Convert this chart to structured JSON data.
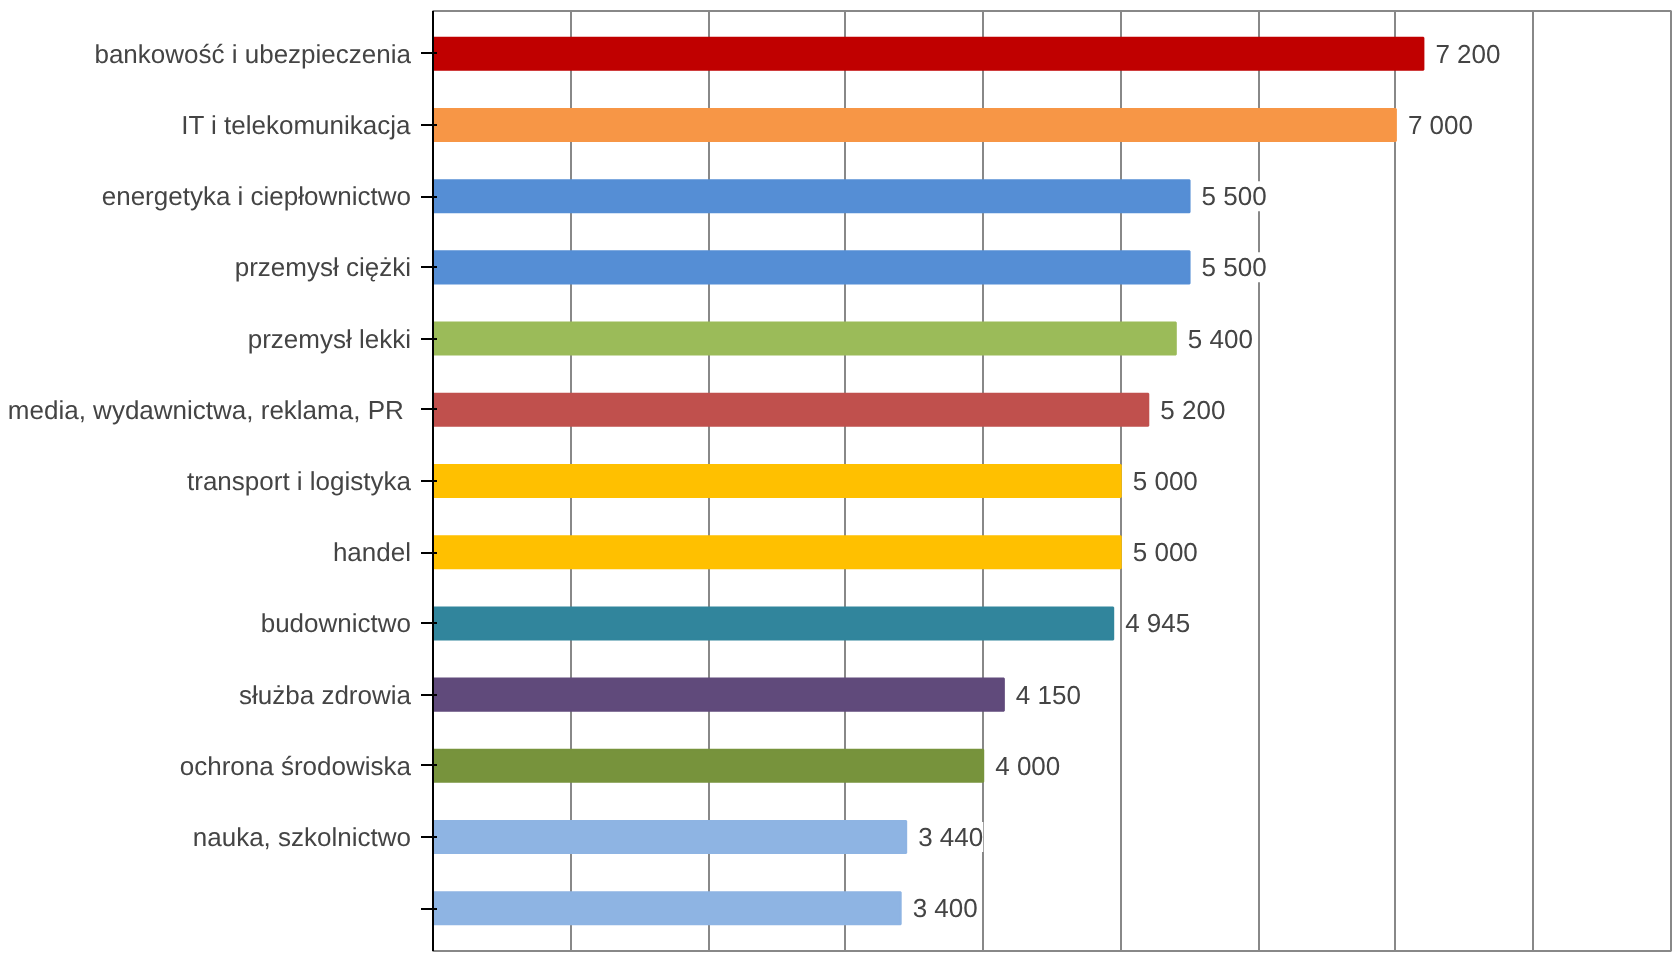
{
  "chart_data": {
    "type": "bar",
    "orientation": "horizontal",
    "categories": [
      "bankowość i ubezpieczenia",
      "IT i telekomunikacja",
      "energetyka i ciepłownictwo",
      "przemysł ciężki",
      "przemysł lekki",
      "media, wydawnictwa,  reklama, PR",
      "transport i logistyka",
      "handel",
      "budownictwo",
      "służba zdrowia",
      "ochrona środowiska",
      "nauka, szkolnictwo",
      null
    ],
    "values": [
      7200,
      7000,
      5500,
      5500,
      5400,
      5200,
      5000,
      5000,
      4945,
      4150,
      4000,
      3440,
      3400
    ],
    "value_labels": [
      "7 200",
      "7 000",
      "5 500",
      "5 500",
      "5 400",
      "5 200",
      "5 000",
      "5 000",
      "4 945",
      "4 150",
      "4 000",
      "3 440",
      "3 400"
    ],
    "colors": [
      "#c00000",
      "#f79646",
      "#558ed5",
      "#558ed5",
      "#9bbb59",
      "#c0504d",
      "#ffc000",
      "#ffc000",
      "#31859c",
      "#604a7b",
      "#77933c",
      "#8eb4e3",
      "#8eb4e3"
    ],
    "xlim": [
      0,
      9000
    ],
    "xticks": [
      {
        "value": 0,
        "label": null
      },
      {
        "value": 1000,
        "label": null
      },
      {
        "value": 2000,
        "label": null
      },
      {
        "value": 3000,
        "label": null
      },
      {
        "value": 4000,
        "label": null
      },
      {
        "value": 5000,
        "label": null
      },
      {
        "value": 6000,
        "label": null
      },
      {
        "value": 7000,
        "label": null
      },
      {
        "value": 8000,
        "label": null
      },
      {
        "value": 9000,
        "label": null
      }
    ],
    "grid": "x",
    "tick_labels": "y"
  }
}
